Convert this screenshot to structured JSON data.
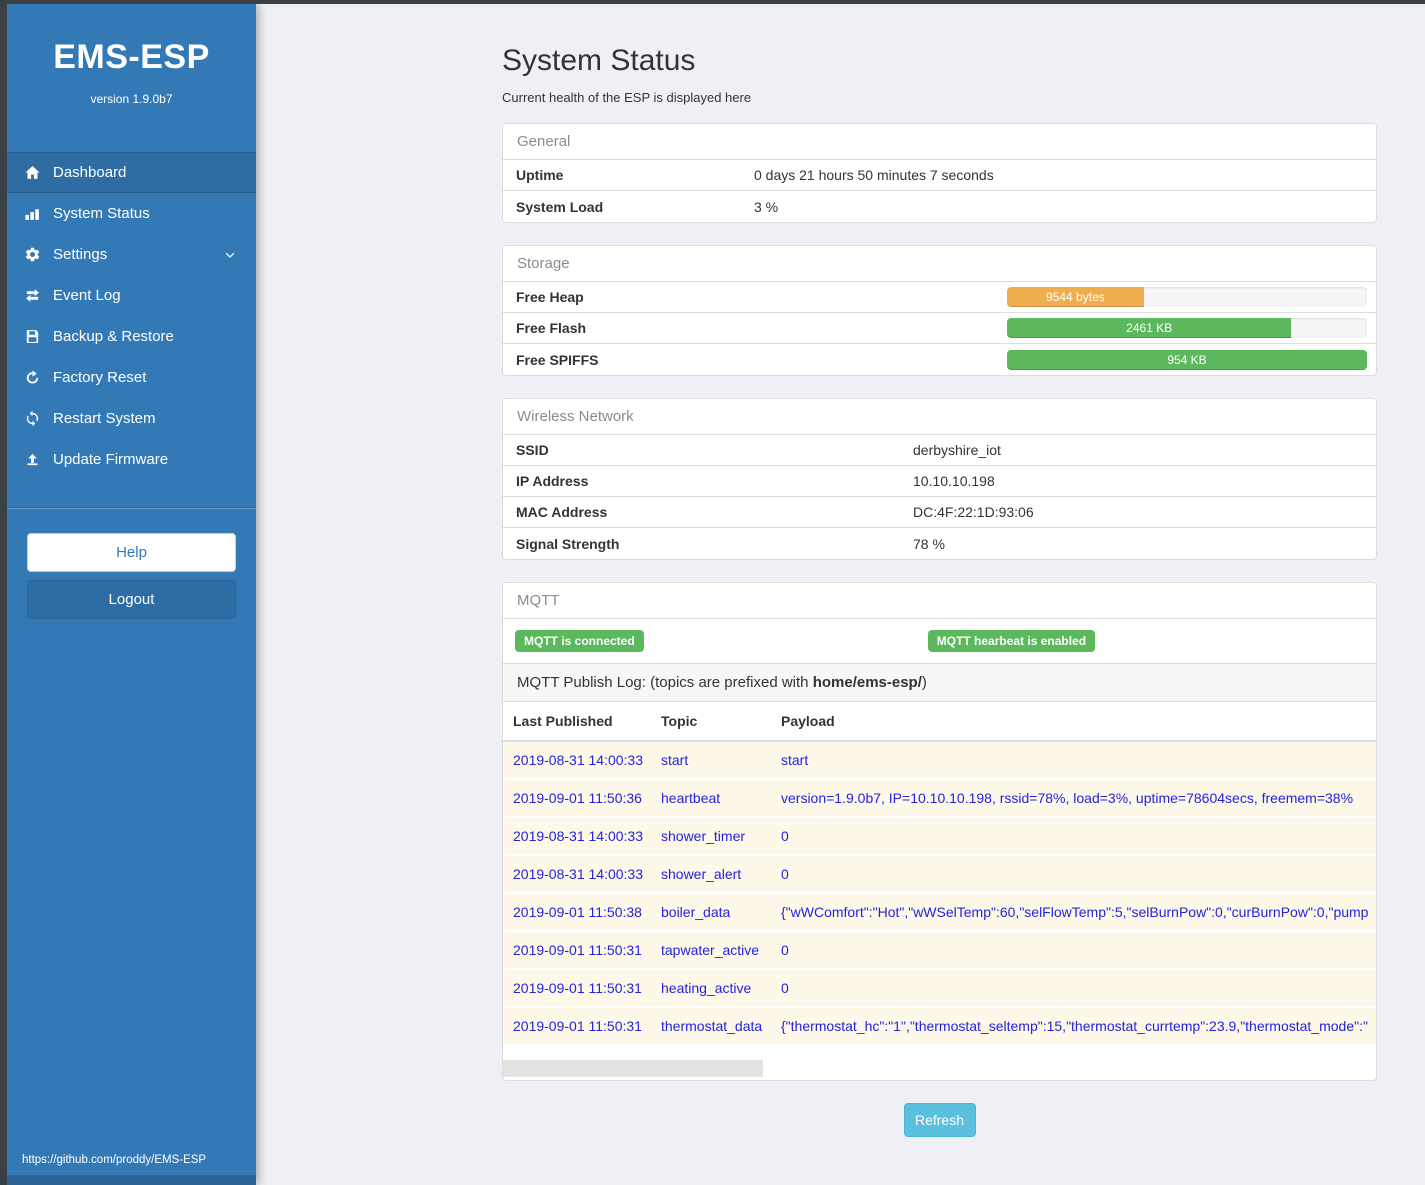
{
  "sidebar": {
    "brand": "EMS-ESP",
    "version": "version 1.9.0b7",
    "items": [
      {
        "label": "Dashboard",
        "icon": "home-icon",
        "active": true
      },
      {
        "label": "System Status",
        "icon": "status-bars-icon"
      },
      {
        "label": "Settings",
        "icon": "gear-icon",
        "chevron": "down"
      },
      {
        "label": "Event Log",
        "icon": "exchange-arrows-icon"
      },
      {
        "label": "Backup & Restore",
        "icon": "save-floppy-icon"
      },
      {
        "label": "Factory Reset",
        "icon": "rotate-arrow-icon"
      },
      {
        "label": "Restart System",
        "icon": "sync-arrows-icon"
      },
      {
        "label": "Update Firmware",
        "icon": "upload-icon"
      }
    ],
    "help_label": "Help",
    "logout_label": "Logout",
    "footer_link": "https://github.com/proddy/EMS-ESP"
  },
  "page": {
    "title": "System Status",
    "subtitle": "Current health of the ESP is displayed here",
    "refresh_label": "Refresh"
  },
  "general": {
    "header": "General",
    "rows": [
      {
        "label": "Uptime",
        "value": "0 days 21 hours 50 minutes 7 seconds"
      },
      {
        "label": "System Load",
        "value": "3 %"
      }
    ]
  },
  "storage": {
    "header": "Storage",
    "bars": [
      {
        "label": "Free Heap",
        "value": "9544 bytes",
        "percent": 38,
        "color": "#f0ad4e"
      },
      {
        "label": "Free Flash",
        "value": "2461 KB",
        "percent": 79,
        "color": "#5cb85c"
      },
      {
        "label": "Free SPIFFS",
        "value": "954 KB",
        "percent": 100,
        "color": "#5cb85c"
      }
    ]
  },
  "wireless": {
    "header": "Wireless Network",
    "rows": [
      {
        "label": "SSID",
        "value": "derbyshire_iot"
      },
      {
        "label": "IP Address",
        "value": "10.10.10.198"
      },
      {
        "label": "MAC Address",
        "value": "DC:4F:22:1D:93:06"
      },
      {
        "label": "Signal Strength",
        "value": "78 %"
      }
    ]
  },
  "mqtt": {
    "header": "MQTT",
    "badges": [
      "MQTT is connected",
      "MQTT hearbeat is enabled"
    ],
    "publish_log": {
      "prefix": "MQTT Publish Log: (topics are prefixed with ",
      "bold": "home/ems-esp/",
      "suffix": ")"
    },
    "columns": [
      "Last Published",
      "Topic",
      "Payload"
    ],
    "rows": [
      [
        "2019-08-31 14:00:33",
        "start",
        "start"
      ],
      [
        "2019-09-01 11:50:36",
        "heartbeat",
        "version=1.9.0b7, IP=10.10.10.198, rssid=78%, load=3%, uptime=78604secs, freemem=38%"
      ],
      [
        "2019-08-31 14:00:33",
        "shower_timer",
        "0"
      ],
      [
        "2019-08-31 14:00:33",
        "shower_alert",
        "0"
      ],
      [
        "2019-09-01 11:50:38",
        "boiler_data",
        "{\"wWComfort\":\"Hot\",\"wWSelTemp\":60,\"selFlowTemp\":5,\"selBurnPow\":0,\"curBurnPow\":0,\"pump"
      ],
      [
        "2019-09-01 11:50:31",
        "tapwater_active",
        "0"
      ],
      [
        "2019-09-01 11:50:31",
        "heating_active",
        "0"
      ],
      [
        "2019-09-01 11:50:31",
        "thermostat_data",
        "{\"thermostat_hc\":\"1\",\"thermostat_seltemp\":15,\"thermostat_currtemp\":23.9,\"thermostat_mode\":\""
      ]
    ]
  },
  "colors": {
    "sidebar_blue": "#3379b5",
    "sidebar_active": "#2e6da4",
    "badge_green": "#5cb85c",
    "bar_orange": "#f0ad4e",
    "bar_green": "#5cb85c",
    "refresh_blue": "#5bc0de",
    "log_row_bg": "#fdf8e7",
    "log_text_blue": "#2323dd",
    "chrome_dark": "#3b4045"
  }
}
